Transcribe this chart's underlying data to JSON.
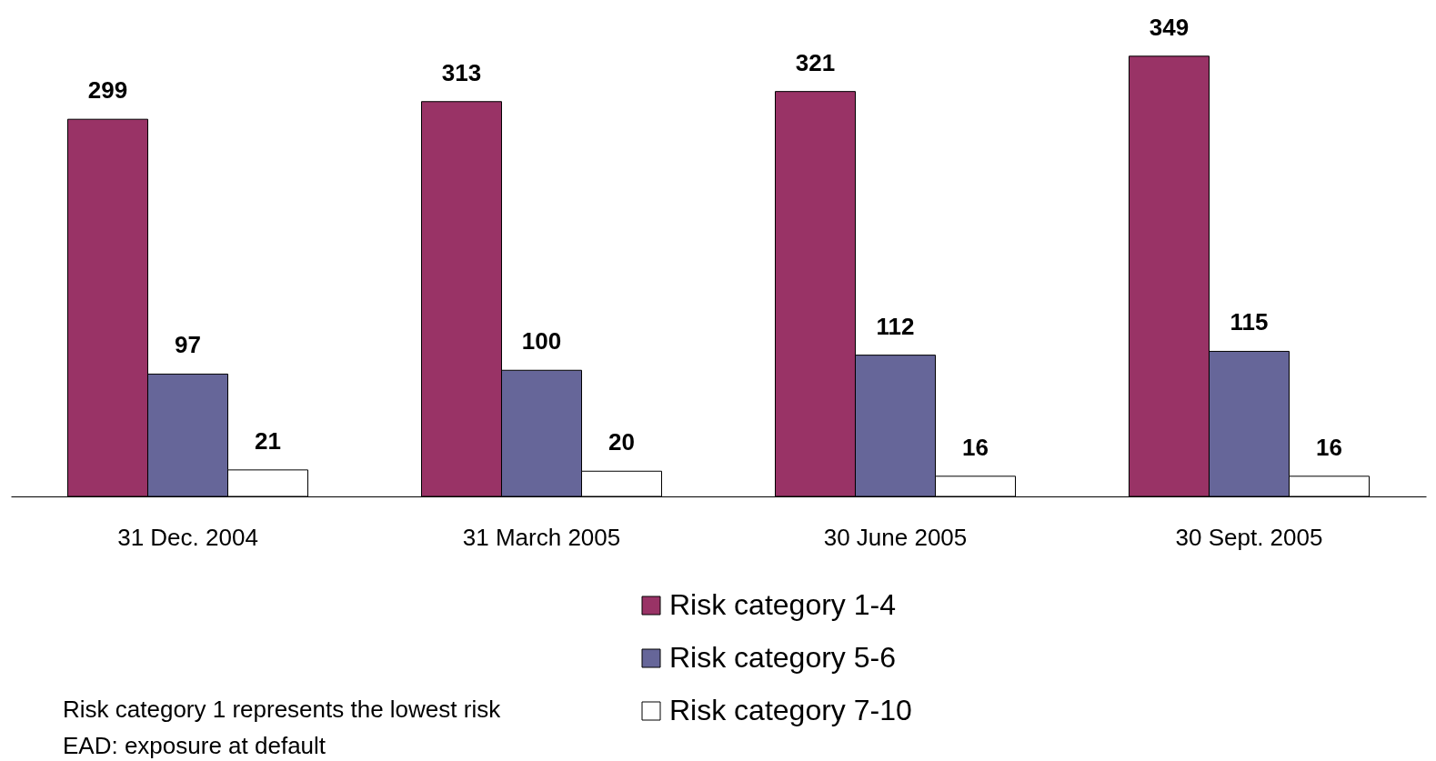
{
  "chart_data": {
    "type": "bar",
    "categories": [
      "31 Dec. 2004",
      "31 March 2005",
      "30 June 2005",
      "30 Sept. 2005"
    ],
    "series": [
      {
        "name": "Risk category 1-4",
        "color": "#993366",
        "values": [
          299,
          313,
          321,
          349
        ]
      },
      {
        "name": "Risk category 5-6",
        "color": "#666699",
        "values": [
          97,
          100,
          112,
          115
        ]
      },
      {
        "name": "Risk category 7-10",
        "color": "#ffffff",
        "values": [
          21,
          20,
          16,
          16
        ]
      }
    ],
    "data_labels": true,
    "legend": "bottom",
    "grid": false,
    "annotations": [
      "Risk category 1 represents the lowest risk",
      "EAD: exposure at default"
    ]
  }
}
